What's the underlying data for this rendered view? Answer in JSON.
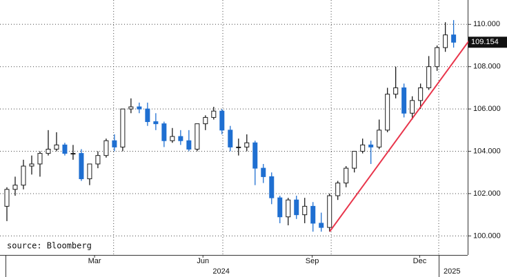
{
  "chart_data": {
    "type": "candlestick",
    "annotation": "source: Bloomberg",
    "categories": [
      null,
      null,
      null,
      null,
      null,
      null,
      null,
      null,
      null,
      null,
      null,
      null,
      null,
      null,
      null,
      null,
      null,
      null,
      null,
      null,
      null,
      null,
      null,
      null,
      null,
      null,
      null,
      null,
      null,
      null,
      null,
      null,
      null,
      null,
      null,
      null,
      null,
      null,
      null,
      null,
      null,
      null,
      null,
      null,
      null,
      null,
      null,
      null,
      null,
      null,
      null,
      null,
      null,
      null,
      null
    ],
    "open": [
      101.4,
      102.2,
      102.4,
      103.3,
      103.4,
      103.9,
      104.1,
      104.3,
      103.9,
      103.9,
      102.7,
      103.4,
      103.8,
      104.5,
      104.2,
      106.0,
      106.1,
      106.0,
      105.4,
      105.3,
      104.5,
      104.7,
      104.5,
      104.1,
      105.3,
      105.6,
      105.9,
      105.0,
      104.2,
      104.2,
      104.4,
      103.2,
      102.8,
      101.8,
      100.9,
      101.7,
      101.0,
      101.4,
      100.6,
      100.4,
      101.9,
      102.5,
      103.2,
      104.0,
      104.3,
      104.2,
      105.0,
      106.7,
      107.0,
      105.8,
      106.4,
      107.0,
      108.0,
      108.9,
      109.5
    ],
    "high": [
      102.3,
      102.8,
      103.6,
      103.8,
      104.0,
      105.0,
      104.9,
      104.4,
      104.3,
      104.1,
      103.4,
      104.0,
      104.6,
      104.8,
      106.0,
      106.5,
      106.3,
      106.3,
      105.8,
      105.4,
      105.1,
      105.0,
      105.0,
      105.3,
      105.7,
      106.1,
      106.0,
      105.2,
      104.6,
      104.8,
      104.5,
      103.4,
      103.0,
      101.9,
      101.8,
      101.9,
      101.8,
      101.6,
      101.1,
      102.0,
      102.6,
      103.3,
      104.0,
      104.6,
      104.5,
      105.5,
      107.0,
      108.0,
      107.2,
      106.6,
      107.2,
      108.5,
      109.0,
      110.1,
      110.2
    ],
    "low": [
      100.7,
      101.9,
      102.2,
      102.9,
      102.8,
      103.8,
      104.0,
      103.8,
      103.6,
      102.6,
      102.4,
      103.2,
      103.7,
      104.0,
      104.0,
      105.8,
      105.8,
      105.2,
      105.0,
      104.2,
      104.4,
      104.3,
      104.0,
      104.0,
      105.0,
      105.5,
      104.8,
      104.0,
      103.8,
      104.0,
      102.4,
      102.5,
      101.5,
      100.6,
      100.5,
      100.8,
      100.6,
      100.2,
      100.2,
      100.2,
      101.7,
      102.3,
      103.0,
      103.9,
      103.4,
      104.1,
      104.9,
      106.5,
      105.6,
      105.5,
      106.0,
      106.9,
      107.8,
      108.7,
      108.9
    ],
    "close": [
      102.2,
      102.4,
      103.3,
      103.4,
      103.9,
      104.1,
      104.3,
      103.9,
      103.9,
      102.7,
      103.4,
      103.8,
      104.5,
      104.2,
      106.0,
      106.1,
      106.0,
      105.4,
      105.3,
      104.5,
      104.7,
      104.5,
      104.1,
      105.3,
      105.6,
      105.9,
      105.0,
      104.2,
      104.2,
      104.4,
      103.2,
      102.8,
      101.8,
      100.9,
      101.7,
      101.0,
      101.4,
      100.6,
      100.4,
      101.9,
      102.5,
      103.2,
      104.0,
      104.3,
      104.2,
      105.0,
      106.7,
      107.0,
      105.8,
      106.4,
      107.0,
      108.0,
      108.9,
      109.5,
      109.154
    ],
    "up_color": "#1a1a1a",
    "down_color": "#1f6fd1",
    "xlim": [
      -0.5,
      55.7
    ],
    "xticks": [
      {
        "value": 10.6,
        "label": "Mar"
      },
      {
        "value": 23.7,
        "label": "Jun"
      },
      {
        "value": 36.9,
        "label": "Sep"
      },
      {
        "value": 49.9,
        "label": "Dec"
      }
    ],
    "xticks_year": [
      {
        "value": 25.9,
        "label": "2024"
      },
      {
        "value": 53.8,
        "label": "2025"
      }
    ],
    "xgrid": [
      12.9,
      26.1,
      39.2,
      52.2
    ],
    "ylim": [
      99.1,
      111.15
    ],
    "yticks": [
      {
        "value": 100,
        "label": "100.000"
      },
      {
        "value": 102,
        "label": "102.000"
      },
      {
        "value": 104,
        "label": "104.000"
      },
      {
        "value": 106,
        "label": "106.000"
      },
      {
        "value": 108,
        "label": "108.000"
      },
      {
        "value": 110,
        "label": "110.000"
      }
    ],
    "grid": true
  }
}
